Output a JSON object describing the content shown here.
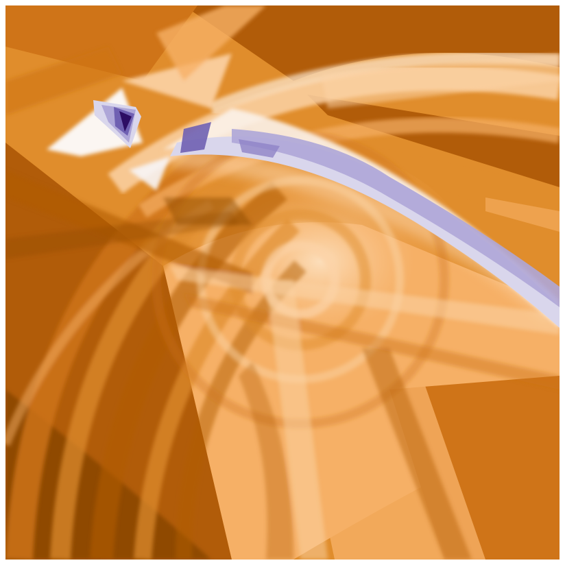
{
  "artwork": {
    "kind": "abstract-texture",
    "colors": {
      "darkest_orange": "#8f4a06",
      "dark_orange": "#b15c09",
      "mid_orange": "#cf7418",
      "orange": "#e08d2c",
      "light_orange": "#f6b066",
      "pale_orange": "#fcd3a6",
      "cream": "#fde9d2",
      "white": "#f7f5f7",
      "pale_purple": "#d9d6ec",
      "light_purple": "#aea6d8",
      "purple": "#6f60b2",
      "dark_purple": "#2d0d64"
    }
  }
}
